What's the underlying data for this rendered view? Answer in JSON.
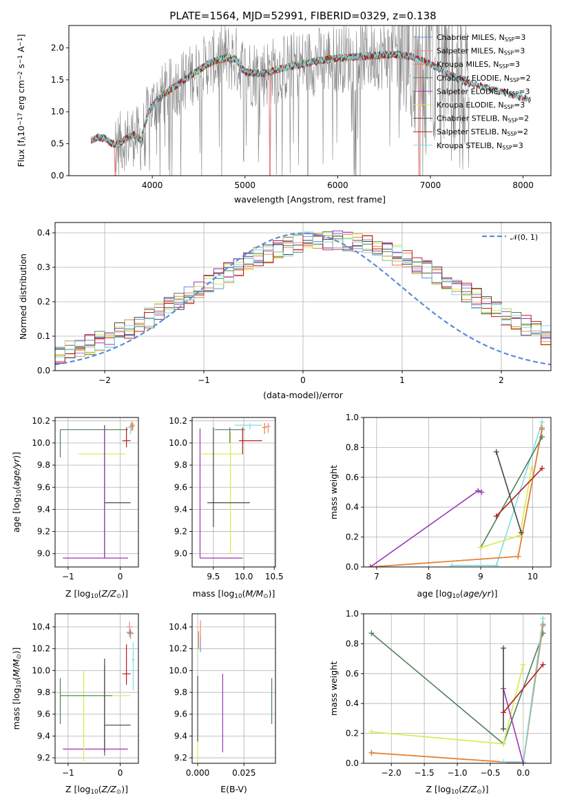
{
  "figure": {
    "title": "PLATE=1564, MJD=52991, FIBERID=0329, z=0.138"
  },
  "colors": {
    "Chabrier MILES": "#6c8fd8",
    "Salpeter MILES": "#f4847e",
    "Kroupa MILES": "#e8822a",
    "Chabrier ELODIE": "#4f7f5a",
    "Salpeter ELODIE": "#9b35b5",
    "Kroupa ELODIE": "#d2ec4a",
    "Chabrier STELIB": "#444444",
    "Salpeter STELIB": "#b51c1c",
    "Kroupa STELIB": "#7fdce0",
    "data": "#808080",
    "normal": "#5b8bdc",
    "grid": "#b0b0b0"
  },
  "chart_data": [
    {
      "id": "spectrum",
      "type": "line",
      "title": "PLATE=1564, MJD=52991, FIBERID=0329, z=0.138",
      "xlabel": "wavelength [Angstrom, rest frame]",
      "ylabel": "Flux [fλ10⁻¹⁷ erg cm⁻² s⁻¹ A⁻¹]",
      "xlim": [
        3100,
        8300
      ],
      "ylim": [
        0,
        2.35
      ],
      "xticks": [
        4000,
        5000,
        6000,
        7000,
        8000
      ],
      "yticks": [
        0.0,
        0.5,
        1.0,
        1.5,
        2.0
      ],
      "grid": false,
      "legend_position": "right",
      "continuum": {
        "x": [
          3340,
          3420,
          3500,
          3560,
          3640,
          3720,
          3800,
          3880,
          3960,
          4060,
          4200,
          4400,
          4600,
          4800,
          4900,
          5000,
          5200,
          5400,
          5600,
          5800,
          6000,
          6200,
          6400,
          6600,
          6800,
          7000,
          7200,
          7400,
          7600,
          7800,
          8000,
          8080
        ],
        "y": [
          0.55,
          0.6,
          0.58,
          0.5,
          0.5,
          0.58,
          0.64,
          0.55,
          1.0,
          1.2,
          1.35,
          1.55,
          1.75,
          1.85,
          1.82,
          1.62,
          1.6,
          1.68,
          1.74,
          1.8,
          1.84,
          1.86,
          1.88,
          1.9,
          1.87,
          1.75,
          1.58,
          1.45,
          1.38,
          1.3,
          1.22,
          1.19
        ]
      },
      "series": [
        {
          "name": "Chabrier MILES, N_SSP=3",
          "label_head": "Chabrier MILES, N",
          "label_sub": "SSP",
          "label_tail": "=3"
        },
        {
          "name": "Salpeter MILES, N_SSP=3",
          "label_head": "Salpeter MILES, N",
          "label_sub": "SSP",
          "label_tail": "=3"
        },
        {
          "name": "Kroupa MILES, N_SSP=3",
          "label_head": "Kroupa MILES, N",
          "label_sub": "SSP",
          "label_tail": "=3"
        },
        {
          "name": "Chabrier ELODIE, N_SSP=2",
          "label_head": "Chabrier ELODIE, N",
          "label_sub": "SSP",
          "label_tail": "=2"
        },
        {
          "name": "Salpeter ELODIE, N_SSP=3",
          "label_head": "Salpeter ELODIE, N",
          "label_sub": "SSP",
          "label_tail": "=3"
        },
        {
          "name": "Kroupa ELODIE, N_SSP=3",
          "label_head": "Kroupa ELODIE, N",
          "label_sub": "SSP",
          "label_tail": "=3"
        },
        {
          "name": "Chabrier STELIB, N_SSP=2",
          "label_head": "Chabrier STELIB, N",
          "label_sub": "SSP",
          "label_tail": "=2"
        },
        {
          "name": "Salpeter STELIB, N_SSP=2",
          "label_head": "Salpeter STELIB, N",
          "label_sub": "SSP",
          "label_tail": "=2"
        },
        {
          "name": "Kroupa STELIB, N_SSP=3",
          "label_head": "Kroupa STELIB, N",
          "label_sub": "SSP",
          "label_tail": "=3"
        }
      ]
    },
    {
      "id": "residuals",
      "type": "histogram",
      "xlabel": "(data-model)/error",
      "ylabel": "Normed distribution",
      "xlim": [
        -2.5,
        2.5
      ],
      "ylim": [
        0,
        0.43
      ],
      "xticks": [
        -2,
        -1,
        0,
        1,
        2
      ],
      "yticks": [
        0.0,
        0.1,
        0.2,
        0.3,
        0.4
      ],
      "grid": true,
      "legend_position": "upper right",
      "legend": "N(0,1)",
      "bin_width": 0.1
    },
    {
      "id": "age_vs_Z",
      "type": "errorbar",
      "xlabel": "Z [log10(Z/Z⊙)]",
      "ylabel": "age [log10(age/yr)]",
      "xlim": [
        -1.25,
        0.35
      ],
      "ylim": [
        8.88,
        10.23
      ],
      "xticks": [
        -1,
        0
      ],
      "yticks": [
        9.0,
        9.2,
        9.4,
        9.6,
        9.8,
        10.0,
        10.2
      ],
      "grid": true,
      "points": [
        {
          "series": "Chabrier ELODIE",
          "x": -1.15,
          "xerr_lo": 0,
          "xerr_hi": 1.3,
          "y": 10.12,
          "yerr_lo": 0.25,
          "yerr_hi": 0.0
        },
        {
          "series": "Kroupa ELODIE",
          "x": -0.3,
          "xerr_lo": 0.5,
          "xerr_hi": 0.4,
          "y": 9.9,
          "yerr_lo": 0.9,
          "yerr_hi": 0.2
        },
        {
          "series": "Chabrier STELIB",
          "x": -0.3,
          "xerr_lo": 0.0,
          "xerr_hi": 0.5,
          "y": 9.46,
          "yerr_lo": 0.5,
          "yerr_hi": 0.7
        },
        {
          "series": "Salpeter ELODIE",
          "x": -0.3,
          "xerr_lo": 0.8,
          "xerr_hi": 0.45,
          "y": 8.96,
          "yerr_lo": 0.0,
          "yerr_hi": 1.18
        },
        {
          "series": "Salpeter STELIB",
          "x": 0.12,
          "xerr_lo": 0.08,
          "xerr_hi": 0.08,
          "y": 10.02,
          "yerr_lo": 0.06,
          "yerr_hi": 0.12
        },
        {
          "series": "Kroupa STELIB",
          "x": 0.2,
          "xerr_lo": 0.06,
          "xerr_hi": 0.06,
          "y": 10.14,
          "yerr_lo": 0.06,
          "yerr_hi": 0.04
        },
        {
          "series": "Salpeter MILES",
          "x": 0.22,
          "xerr_lo": 0.05,
          "xerr_hi": 0.05,
          "y": 10.15,
          "yerr_lo": 0.04,
          "yerr_hi": 0.04
        },
        {
          "series": "Kroupa MILES",
          "x": 0.24,
          "xerr_lo": 0.04,
          "xerr_hi": 0.04,
          "y": 10.16,
          "yerr_lo": 0.05,
          "yerr_hi": 0.03
        }
      ]
    },
    {
      "id": "age_vs_mass",
      "type": "errorbar",
      "xlabel": "mass [log10(M/M⊙)]",
      "ylabel": "",
      "xlim": [
        9.15,
        10.52
      ],
      "ylim": [
        8.88,
        10.23
      ],
      "xticks": [
        9.5,
        10.0,
        10.5
      ],
      "yticks": [
        9.0,
        9.2,
        9.4,
        9.6,
        9.8,
        10.0,
        10.2
      ],
      "grid": true,
      "points": [
        {
          "series": "Salpeter ELODIE",
          "x": 9.28,
          "xerr_lo": 0.0,
          "xerr_hi": 0.7,
          "y": 8.96,
          "yerr_lo": 0.0,
          "yerr_hi": 1.17
        },
        {
          "series": "Kroupa ELODIE",
          "x": 9.78,
          "xerr_lo": 0.5,
          "xerr_hi": 0.22,
          "y": 9.9,
          "yerr_lo": 0.9,
          "yerr_hi": 0.2
        },
        {
          "series": "Chabrier STELIB",
          "x": 9.5,
          "xerr_lo": 0.1,
          "xerr_hi": 0.6,
          "y": 9.46,
          "yerr_lo": 0.22,
          "yerr_hi": 0.68
        },
        {
          "series": "Chabrier ELODIE",
          "x": 9.77,
          "xerr_lo": 0.25,
          "xerr_hi": 0.25,
          "y": 10.12,
          "yerr_lo": 0.12,
          "yerr_hi": 0.02
        },
        {
          "series": "Salpeter STELIB",
          "x": 9.98,
          "xerr_lo": 0.06,
          "xerr_hi": 0.32,
          "y": 10.02,
          "yerr_lo": 0.12,
          "yerr_hi": 0.12
        },
        {
          "series": "Kroupa STELIB",
          "x": 10.1,
          "xerr_lo": 0.25,
          "xerr_hi": 0.2,
          "y": 10.16,
          "yerr_lo": 0.04,
          "yerr_hi": 0.02
        },
        {
          "series": "Salpeter MILES",
          "x": 10.4,
          "xerr_lo": 0.04,
          "xerr_hi": 0.04,
          "y": 10.15,
          "yerr_lo": 0.06,
          "yerr_hi": 0.03
        },
        {
          "series": "Kroupa MILES",
          "x": 10.34,
          "xerr_lo": 0.04,
          "xerr_hi": 0.04,
          "y": 10.14,
          "yerr_lo": 0.06,
          "yerr_hi": 0.04
        }
      ]
    },
    {
      "id": "weight_vs_age",
      "type": "line",
      "xlabel": "age [log10(age/yr)]",
      "ylabel": "mass weight",
      "xlim": [
        6.75,
        10.35
      ],
      "ylim": [
        0,
        1.0
      ],
      "xticks": [
        7,
        8,
        9,
        10
      ],
      "yticks": [
        0.0,
        0.2,
        0.4,
        0.6,
        0.8,
        1.0
      ],
      "grid": true,
      "series": [
        {
          "name": "Kroupa STELIB",
          "x": [
            8.45,
            9.3,
            10.18
          ],
          "y": [
            0.01,
            0.01,
            0.97
          ]
        },
        {
          "name": "Chabrier MILES",
          "x": [
            6.88,
            9.72,
            10.18
          ],
          "y": [
            0.0,
            0.07,
            0.92
          ]
        },
        {
          "name": "Salpeter MILES",
          "x": [
            6.88,
            9.72,
            10.18
          ],
          "y": [
            0.0,
            0.07,
            0.93
          ]
        },
        {
          "name": "Kroupa MILES",
          "x": [
            6.88,
            9.72,
            10.18
          ],
          "y": [
            0.0,
            0.07,
            0.93
          ]
        },
        {
          "name": "Chabrier ELODIE",
          "x": [
            9.0,
            10.18
          ],
          "y": [
            0.13,
            0.87
          ]
        },
        {
          "name": "Salpeter ELODIE",
          "x": [
            6.88,
            8.95,
            9.02
          ],
          "y": [
            0.0,
            0.51,
            0.5
          ]
        },
        {
          "name": "Kroupa ELODIE",
          "x": [
            9.0,
            9.75,
            9.98
          ],
          "y": [
            0.13,
            0.21,
            0.66
          ]
        },
        {
          "name": "Chabrier STELIB",
          "x": [
            9.3,
            9.78
          ],
          "y": [
            0.77,
            0.23
          ]
        },
        {
          "name": "Salpeter STELIB",
          "x": [
            9.3,
            10.18
          ],
          "y": [
            0.34,
            0.66
          ]
        }
      ]
    },
    {
      "id": "mass_vs_Z",
      "type": "errorbar",
      "xlabel": "Z [log10(Z/Z⊙)]",
      "ylabel": "mass [log10(M/M⊙)]",
      "xlim": [
        -1.25,
        0.35
      ],
      "ylim": [
        9.15,
        10.52
      ],
      "xticks": [
        -1,
        0
      ],
      "yticks": [
        9.2,
        9.4,
        9.6,
        9.8,
        10.0,
        10.2,
        10.4
      ],
      "grid": true,
      "points": [
        {
          "series": "Salpeter ELODIE",
          "x": -0.3,
          "xerr_lo": 0.8,
          "xerr_hi": 0.45,
          "y": 9.28,
          "yerr_lo": 0.06,
          "yerr_hi": 0.77
        },
        {
          "series": "Kroupa ELODIE",
          "x": -0.7,
          "xerr_lo": 0.4,
          "xerr_hi": 0.9,
          "y": 9.77,
          "yerr_lo": 0.6,
          "yerr_hi": 0.23
        },
        {
          "series": "Chabrier ELODIE",
          "x": -1.15,
          "xerr_lo": 0.0,
          "xerr_hi": 1.0,
          "y": 9.77,
          "yerr_lo": 0.26,
          "yerr_hi": 0.16
        },
        {
          "series": "Chabrier STELIB",
          "x": -0.3,
          "xerr_lo": 0.0,
          "xerr_hi": 0.5,
          "y": 9.5,
          "yerr_lo": 0.25,
          "yerr_hi": 0.61
        },
        {
          "series": "Salpeter STELIB",
          "x": 0.12,
          "xerr_lo": 0.08,
          "xerr_hi": 0.08,
          "y": 9.97,
          "yerr_lo": 0.1,
          "yerr_hi": 0.27
        },
        {
          "series": "Kroupa STELIB",
          "x": 0.25,
          "xerr_lo": 0.03,
          "xerr_hi": 0.03,
          "y": 10.1,
          "yerr_lo": 0.28,
          "yerr_hi": 0.16
        },
        {
          "series": "Salpeter MILES",
          "x": 0.18,
          "xerr_lo": 0.06,
          "xerr_hi": 0.06,
          "y": 10.4,
          "yerr_lo": 0.05,
          "yerr_hi": 0.05
        },
        {
          "series": "Kroupa MILES",
          "x": 0.2,
          "xerr_lo": 0.06,
          "xerr_hi": 0.06,
          "y": 10.34,
          "yerr_lo": 0.05,
          "yerr_hi": 0.04
        },
        {
          "series": "Chabrier MILES",
          "x": 0.18,
          "xerr_lo": 0.06,
          "xerr_hi": 0.06,
          "y": 10.35,
          "yerr_lo": 0.04,
          "yerr_hi": 0.03
        }
      ]
    },
    {
      "id": "mass_vs_ebv",
      "type": "errorbar",
      "xlabel": "E(B-V)",
      "ylabel": "",
      "xlim": [
        -0.003,
        0.042
      ],
      "ylim": [
        9.15,
        10.52
      ],
      "xticks": [
        0.0,
        0.025
      ],
      "xtick_labels": [
        "0.000",
        "0.025"
      ],
      "yticks": [
        9.2,
        9.4,
        9.6,
        9.8,
        10.0,
        10.2,
        10.4
      ],
      "grid": true,
      "points": [
        {
          "series": "Chabrier ELODIE",
          "x": 0.04,
          "xerr_lo": 0,
          "xerr_hi": 0,
          "y": 9.72,
          "yerr_lo": 0.21,
          "yerr_hi": 0.21
        },
        {
          "series": "Salpeter ELODIE",
          "x": 0.0135,
          "xerr_lo": 0,
          "xerr_hi": 0,
          "y": 9.61,
          "yerr_lo": 0.36,
          "yerr_hi": 0.36
        },
        {
          "series": "Kroupa ELODIE",
          "x": 0.0,
          "xerr_lo": 0,
          "xerr_hi": 0,
          "y": 9.28,
          "yerr_lo": 0.13,
          "yerr_hi": 0.1
        },
        {
          "series": "Chabrier MILES",
          "x": 0.0015,
          "xerr_lo": 0,
          "xerr_hi": 0,
          "y": 10.25,
          "yerr_lo": 0.08,
          "yerr_hi": 0.08
        },
        {
          "series": "Salpeter MILES",
          "x": 0.0015,
          "xerr_lo": 0,
          "xerr_hi": 0,
          "y": 10.38,
          "yerr_lo": 0.08,
          "yerr_hi": 0.08
        },
        {
          "series": "Kroupa MILES",
          "x": 0.0005,
          "xerr_lo": 0,
          "xerr_hi": 0,
          "y": 10.28,
          "yerr_lo": 0.08,
          "yerr_hi": 0.08
        },
        {
          "series": "Chabrier STELIB",
          "x": 0.0,
          "xerr_lo": 0,
          "xerr_hi": 0,
          "y": 9.6,
          "yerr_lo": 0.25,
          "yerr_hi": 0.35
        }
      ]
    },
    {
      "id": "weight_vs_Z",
      "type": "line",
      "xlabel": "Z [log10(Z/Z⊙)]",
      "ylabel": "mass weight",
      "xlim": [
        -2.42,
        0.42
      ],
      "ylim": [
        0,
        1.0
      ],
      "xticks": [
        -2.0,
        -1.5,
        -1.0,
        -0.5,
        0.0
      ],
      "yticks": [
        0.0,
        0.2,
        0.4,
        0.6,
        0.8,
        1.0
      ],
      "grid": true,
      "series": [
        {
          "name": "Chabrier ELODIE",
          "x": [
            -2.3,
            -0.3,
            0.3
          ],
          "y": [
            0.87,
            0.13,
            0.87
          ]
        },
        {
          "name": "Kroupa ELODIE",
          "x": [
            -2.3,
            -0.3,
            0.0
          ],
          "y": [
            0.21,
            0.13,
            0.66
          ]
        },
        {
          "name": "Chabrier MILES",
          "x": [
            -2.3,
            0.0,
            0.3
          ],
          "y": [
            0.07,
            0.0,
            0.92
          ]
        },
        {
          "name": "Salpeter MILES",
          "x": [
            -2.3,
            0.0,
            0.3
          ],
          "y": [
            0.07,
            0.0,
            0.93
          ]
        },
        {
          "name": "Kroupa MILES",
          "x": [
            -2.3,
            0.0,
            0.3
          ],
          "y": [
            0.07,
            0.0,
            0.93
          ]
        },
        {
          "name": "Kroupa STELIB",
          "x": [
            -0.3,
            0.0,
            0.3
          ],
          "y": [
            0.01,
            0.01,
            0.97
          ]
        },
        {
          "name": "Salpeter ELODIE",
          "x": [
            -0.3,
            0.0
          ],
          "y": [
            0.5,
            0.0
          ]
        },
        {
          "name": "Chabrier STELIB",
          "x": [
            -0.3,
            -0.3
          ],
          "y": [
            0.77,
            0.23
          ]
        },
        {
          "name": "Salpeter STELIB",
          "x": [
            -0.3,
            0.3
          ],
          "y": [
            0.34,
            0.66
          ]
        }
      ]
    }
  ]
}
